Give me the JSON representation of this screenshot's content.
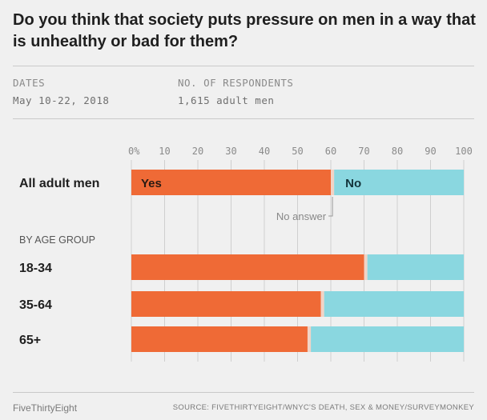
{
  "title": "Do you think that society puts pressure on men in a way that is unhealthy or bad for them?",
  "meta": {
    "dates_label": "DATES",
    "dates_value": "May 10-22, 2018",
    "respondents_label": "NO. OF RESPONDENTS",
    "respondents_value": "1,615 adult men"
  },
  "chart_data": {
    "type": "bar",
    "orientation": "horizontal",
    "stacked": true,
    "xlim": [
      0,
      100
    ],
    "x_ticks": [
      "0%",
      "10",
      "20",
      "30",
      "40",
      "50",
      "60",
      "70",
      "80",
      "90",
      "100"
    ],
    "grid": true,
    "categories": [
      "All adult men",
      "18-34",
      "35-64",
      "65+"
    ],
    "group_label": "BY AGE GROUP",
    "series": [
      {
        "name": "Yes",
        "values": [
          60,
          70,
          57,
          53
        ]
      },
      {
        "name": "No answer",
        "values": [
          1,
          1,
          1,
          1
        ]
      },
      {
        "name": "No",
        "values": [
          39,
          29,
          42,
          46
        ]
      }
    ],
    "colors": {
      "Yes": "#ef6a36",
      "No answer": "#f1d3c6",
      "No": "#8ad7e0"
    },
    "annotations": {
      "no_answer_label": "No answer"
    }
  },
  "footer": {
    "brand": "FiveThirtyEight",
    "source": "SOURCE: FIVETHIRTYEIGHT/WNYC'S DEATH, SEX & MONEY/SURVEYMONKEY"
  }
}
